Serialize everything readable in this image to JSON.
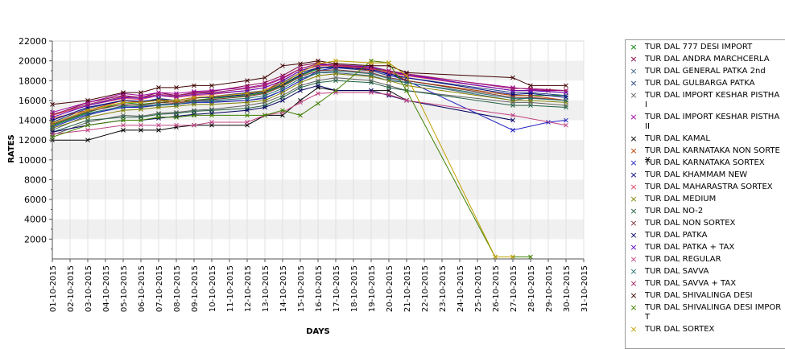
{
  "chart_data": {
    "type": "line",
    "title": "",
    "xlabel": "DAYS",
    "ylabel": "RATES",
    "ylim": [
      0,
      22000
    ],
    "yticks": [
      2000,
      4000,
      6000,
      8000,
      10000,
      12000,
      14000,
      16000,
      18000,
      20000,
      22000
    ],
    "grid": "horizontal bands",
    "legend_position": "right",
    "categories": [
      "01-10-2015",
      "02-10-2015",
      "03-10-2015",
      "04-10-2015",
      "05-10-2015",
      "06-10-2015",
      "07-10-2015",
      "08-10-2015",
      "09-10-2015",
      "10-10-2015",
      "11-10-2015",
      "12-10-2015",
      "13-10-2015",
      "14-10-2015",
      "15-10-2015",
      "16-10-2015",
      "17-10-2015",
      "18-10-2015",
      "19-10-2015",
      "20-10-2015",
      "21-10-2015",
      "22-10-2015",
      "23-10-2015",
      "24-10-2015",
      "25-10-2015",
      "26-10-2015",
      "27-10-2015",
      "28-10-2015",
      "29-10-2015",
      "30-10-2015",
      "31-10-2015"
    ],
    "series": [
      {
        "name": "TUR DAL 777 DESI IMPORT",
        "color": "#008000",
        "values": [
          13500,
          null,
          14800,
          null,
          15800,
          15600,
          15800,
          15900,
          16000,
          16200,
          null,
          16500,
          16800,
          17500,
          18500,
          19200,
          19500,
          null,
          19300,
          18800,
          18000,
          null,
          null,
          null,
          null,
          null,
          16500,
          16500,
          null,
          16500,
          null
        ]
      },
      {
        "name": "TUR DAL ANDRA MARCHCERLA",
        "color": "#800040",
        "values": [
          14500,
          null,
          15800,
          null,
          16500,
          16300,
          16800,
          16500,
          16800,
          16900,
          null,
          17500,
          17800,
          18500,
          19500,
          19800,
          19500,
          null,
          19300,
          19000,
          18500,
          null,
          null,
          null,
          null,
          null,
          17000,
          17000,
          17000,
          17000,
          null
        ]
      },
      {
        "name": "TUR DAL GENERAL PATKA 2nd",
        "color": "#406080",
        "values": [
          13000,
          null,
          14500,
          null,
          15500,
          15300,
          15500,
          15600,
          15800,
          15900,
          null,
          16000,
          16300,
          17000,
          18000,
          18800,
          18800,
          null,
          18500,
          18000,
          17800,
          null,
          null,
          null,
          null,
          null,
          16000,
          16300,
          null,
          16000,
          null
        ]
      },
      {
        "name": "TUR DAL GULBARGA PATKA",
        "color": "#204080",
        "values": [
          13800,
          null,
          15200,
          null,
          16000,
          15800,
          16200,
          16000,
          16300,
          16400,
          null,
          16800,
          17000,
          17800,
          18800,
          19300,
          19300,
          null,
          19000,
          18500,
          18300,
          null,
          null,
          null,
          null,
          null,
          16800,
          16800,
          null,
          16500,
          null
        ]
      },
      {
        "name": "TUR DAL IMPORT KESHAR PISTHA I",
        "color": "#606060",
        "values": [
          12500,
          null,
          13800,
          null,
          14500,
          14400,
          14700,
          14800,
          15000,
          15100,
          null,
          15500,
          15800,
          16500,
          17500,
          18000,
          18300,
          null,
          18000,
          17500,
          17000,
          null,
          null,
          null,
          null,
          null,
          15800,
          15800,
          null,
          15500,
          null
        ]
      },
      {
        "name": "TUR DAL IMPORT KESHAR PISTHA II",
        "color": "#a000a0",
        "values": [
          14800,
          null,
          15800,
          null,
          16700,
          16500,
          16800,
          16700,
          16900,
          17000,
          null,
          17300,
          17600,
          18300,
          19200,
          19700,
          19600,
          null,
          19300,
          19000,
          18600,
          null,
          null,
          null,
          null,
          null,
          17300,
          17100,
          null,
          17000,
          null
        ]
      },
      {
        "name": "TUR DAL KAMAL",
        "color": "#000000",
        "values": [
          12000,
          null,
          12000,
          null,
          13000,
          13000,
          13000,
          13300,
          13500,
          13500,
          null,
          13500,
          14500,
          14500,
          16000,
          17300,
          17000,
          null,
          17000,
          17000,
          16000,
          null,
          null,
          null,
          null,
          null,
          null,
          null,
          null,
          null,
          null
        ]
      },
      {
        "name": "TUR DAL KARNATAKA NON SORTEX",
        "color": "#c04000",
        "values": [
          14200,
          null,
          15000,
          null,
          16000,
          15800,
          16000,
          15800,
          16200,
          16400,
          null,
          16700,
          17000,
          18000,
          19000,
          19500,
          19500,
          null,
          19000,
          19000,
          18000,
          null,
          null,
          null,
          null,
          null,
          16500,
          16500,
          null,
          16000,
          null
        ]
      },
      {
        "name": "TUR DAL KARNATAKA SORTEX",
        "color": "#2020c0",
        "values": [
          13300,
          null,
          14600,
          null,
          15300,
          15300,
          15600,
          15600,
          15800,
          15800,
          null,
          16000,
          16200,
          17000,
          18000,
          19000,
          19300,
          null,
          19200,
          18600,
          18000,
          null,
          null,
          null,
          null,
          null,
          13000,
          null,
          13800,
          14000,
          null
        ]
      },
      {
        "name": "TUR DAL KHAMMAM NEW",
        "color": "#000080",
        "values": [
          14000,
          null,
          15300,
          null,
          16000,
          15900,
          16100,
          16000,
          16300,
          16300,
          null,
          16600,
          16900,
          17600,
          18600,
          19300,
          19400,
          null,
          19100,
          18700,
          18300,
          null,
          null,
          null,
          null,
          null,
          16600,
          16700,
          null,
          16300,
          null
        ]
      },
      {
        "name": "TUR DAL MAHARASTRA SORTEX",
        "color": "#e04060",
        "values": [
          14500,
          null,
          15500,
          null,
          16200,
          16100,
          16500,
          16300,
          16500,
          16600,
          null,
          17000,
          17300,
          18000,
          19000,
          19500,
          19500,
          null,
          19200,
          18800,
          18500,
          null,
          null,
          null,
          null,
          null,
          17000,
          17000,
          null,
          16800,
          null
        ]
      },
      {
        "name": "TUR DAL MEDIUM",
        "color": "#808000",
        "values": [
          13200,
          null,
          14300,
          null,
          15000,
          15100,
          15300,
          15400,
          15600,
          15600,
          null,
          15800,
          16000,
          16800,
          17800,
          18500,
          18700,
          null,
          18400,
          18000,
          17500,
          null,
          null,
          null,
          null,
          null,
          16000,
          16000,
          null,
          15800,
          null
        ]
      },
      {
        "name": "TUR DAL NO-2",
        "color": "#206040",
        "values": [
          12800,
          null,
          14000,
          null,
          14300,
          14300,
          14600,
          14700,
          14900,
          15000,
          null,
          15200,
          15500,
          16300,
          17300,
          17800,
          18000,
          null,
          17800,
          17300,
          17000,
          null,
          null,
          null,
          null,
          null,
          15500,
          15500,
          null,
          15300,
          null
        ]
      },
      {
        "name": "TUR DAL NON SORTEX",
        "color": "#803030",
        "values": [
          13600,
          null,
          14900,
          null,
          15600,
          15500,
          15800,
          15700,
          16000,
          16100,
          null,
          16400,
          16700,
          17400,
          18400,
          19000,
          19100,
          null,
          18800,
          18300,
          18000,
          null,
          null,
          null,
          null,
          null,
          16300,
          16300,
          null,
          16000,
          null
        ]
      },
      {
        "name": "TUR DAL PATKA",
        "color": "#000060",
        "values": [
          12800,
          null,
          13500,
          null,
          14000,
          14000,
          14200,
          14400,
          14600,
          14700,
          null,
          15000,
          15300,
          16000,
          17000,
          17500,
          17000,
          null,
          17000,
          16500,
          16000,
          null,
          null,
          null,
          null,
          null,
          14000,
          null,
          null,
          null,
          null
        ]
      },
      {
        "name": "TUR DAL PATKA + TAX",
        "color": "#6000c0",
        "values": [
          14300,
          null,
          15500,
          null,
          16300,
          16200,
          16500,
          16400,
          16600,
          16700,
          null,
          17000,
          17300,
          18000,
          19000,
          19600,
          19600,
          null,
          19400,
          19000,
          18600,
          null,
          null,
          null,
          null,
          null,
          17000,
          17000,
          null,
          16800,
          null
        ]
      },
      {
        "name": "TUR DAL REGULAR",
        "color": "#c04080",
        "values": [
          12600,
          null,
          13000,
          null,
          13500,
          13500,
          13500,
          13500,
          13500,
          13800,
          null,
          13800,
          14500,
          14800,
          15800,
          16700,
          16800,
          null,
          16800,
          16600,
          16000,
          null,
          null,
          null,
          null,
          null,
          14500,
          null,
          null,
          13500,
          null
        ]
      },
      {
        "name": "TUR DAL SAVVA",
        "color": "#207070",
        "values": [
          13400,
          null,
          14700,
          null,
          15400,
          15400,
          15600,
          15600,
          15900,
          16000,
          null,
          16200,
          16500,
          17200,
          18200,
          18800,
          19000,
          null,
          18700,
          18200,
          17800,
          null,
          null,
          null,
          null,
          null,
          16200,
          16200,
          null,
          16000,
          null
        ]
      },
      {
        "name": "TUR DAL SAVVA + TAX",
        "color": "#a02060",
        "values": [
          14600,
          null,
          15600,
          null,
          16400,
          16300,
          16600,
          16500,
          16700,
          16800,
          null,
          17200,
          17500,
          18200,
          19200,
          19700,
          19600,
          null,
          19300,
          19000,
          18700,
          null,
          null,
          null,
          null,
          null,
          17200,
          17200,
          null,
          17000,
          null
        ]
      },
      {
        "name": "TUR DAL SHIVALINGA DESI",
        "color": "#400000",
        "values": [
          15600,
          null,
          16000,
          null,
          16800,
          16800,
          17300,
          17300,
          17500,
          17500,
          null,
          18000,
          18300,
          19500,
          19700,
          20000,
          19700,
          null,
          19500,
          19500,
          18800,
          null,
          null,
          null,
          null,
          null,
          18300,
          17500,
          null,
          17500,
          null
        ]
      },
      {
        "name": "TUR DAL SHIVALINGA DESI IMPORT",
        "color": "#408000",
        "values": [
          12300,
          null,
          13500,
          null,
          14000,
          14000,
          14300,
          14300,
          14500,
          14500,
          null,
          14500,
          14500,
          15000,
          14500,
          15700,
          17000,
          null,
          20000,
          19800,
          17000,
          null,
          null,
          null,
          null,
          200,
          200,
          200,
          null,
          null,
          null
        ]
      },
      {
        "name": "TUR DAL SORTEX",
        "color": "#c0a000",
        "values": [
          13700,
          null,
          15000,
          null,
          15800,
          15800,
          16000,
          16000,
          16300,
          16400,
          null,
          16700,
          17000,
          17700,
          18800,
          19700,
          20000,
          null,
          19800,
          19800,
          18500,
          null,
          null,
          null,
          null,
          200,
          200,
          null,
          null,
          null,
          null
        ]
      }
    ]
  }
}
